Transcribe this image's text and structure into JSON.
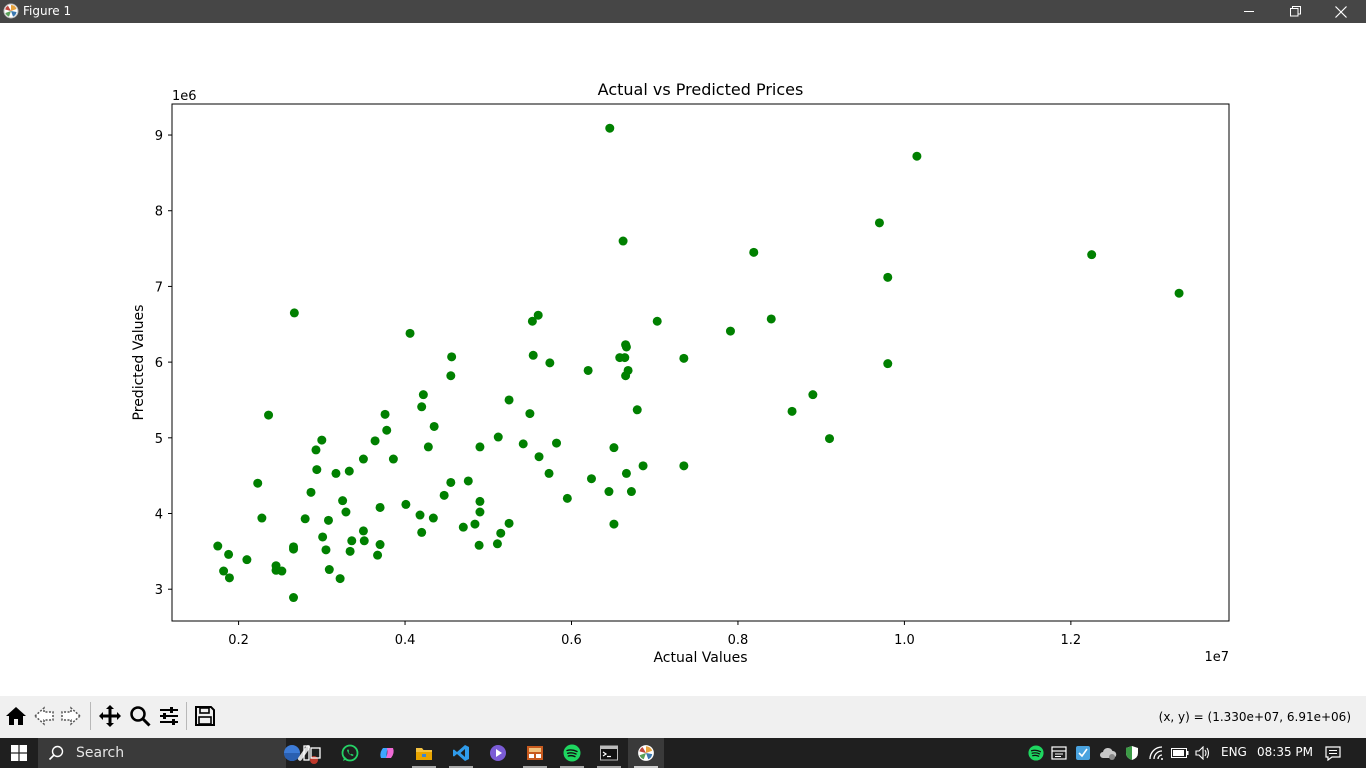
{
  "window": {
    "title": "Figure 1",
    "icons": {
      "app": "matplotlib-icon",
      "minimize": "minimize-icon",
      "maximize": "restore-icon",
      "close": "close-icon"
    }
  },
  "chart_data": {
    "type": "scatter",
    "title": "Actual vs Predicted Prices",
    "xlabel": "Actual Values",
    "ylabel": "Predicted Values",
    "x_offset_label": "1e7",
    "y_offset_label": "1e6",
    "x_ticks": [
      0.2,
      0.4,
      0.6,
      0.8,
      1.0,
      1.2
    ],
    "x_tick_labels": [
      "0.2",
      "0.4",
      "0.6",
      "0.8",
      "1.0",
      "1.2"
    ],
    "y_ticks": [
      3,
      4,
      5,
      6,
      7,
      8,
      9
    ],
    "y_tick_labels": [
      "3",
      "4",
      "5",
      "6",
      "7",
      "8",
      "9"
    ],
    "xlim": [
      0.12,
      1.39
    ],
    "ylim": [
      2.58,
      9.41
    ],
    "grid": false,
    "marker_color": "#008000",
    "points": [
      [
        0.175,
        3.57
      ],
      [
        0.182,
        3.24
      ],
      [
        0.188,
        3.46
      ],
      [
        0.189,
        3.15
      ],
      [
        0.21,
        3.39
      ],
      [
        0.223,
        4.4
      ],
      [
        0.228,
        3.94
      ],
      [
        0.236,
        5.3
      ],
      [
        0.245,
        3.31
      ],
      [
        0.245,
        3.25
      ],
      [
        0.252,
        3.24
      ],
      [
        0.266,
        3.53
      ],
      [
        0.266,
        3.56
      ],
      [
        0.266,
        2.89
      ],
      [
        0.267,
        6.65
      ],
      [
        0.28,
        3.93
      ],
      [
        0.287,
        4.28
      ],
      [
        0.293,
        4.84
      ],
      [
        0.294,
        4.58
      ],
      [
        0.3,
        4.97
      ],
      [
        0.301,
        3.69
      ],
      [
        0.305,
        3.52
      ],
      [
        0.308,
        3.91
      ],
      [
        0.309,
        3.26
      ],
      [
        0.317,
        4.53
      ],
      [
        0.322,
        3.14
      ],
      [
        0.325,
        4.17
      ],
      [
        0.329,
        4.02
      ],
      [
        0.333,
        4.56
      ],
      [
        0.334,
        3.5
      ],
      [
        0.336,
        3.64
      ],
      [
        0.35,
        4.72
      ],
      [
        0.35,
        3.77
      ],
      [
        0.351,
        3.64
      ],
      [
        0.364,
        4.96
      ],
      [
        0.367,
        3.45
      ],
      [
        0.37,
        4.08
      ],
      [
        0.37,
        3.59
      ],
      [
        0.376,
        5.31
      ],
      [
        0.378,
        5.1
      ],
      [
        0.386,
        4.72
      ],
      [
        0.401,
        4.12
      ],
      [
        0.406,
        6.38
      ],
      [
        0.418,
        3.98
      ],
      [
        0.42,
        3.75
      ],
      [
        0.42,
        5.41
      ],
      [
        0.422,
        5.57
      ],
      [
        0.428,
        4.88
      ],
      [
        0.434,
        3.94
      ],
      [
        0.435,
        5.15
      ],
      [
        0.447,
        4.24
      ],
      [
        0.455,
        4.41
      ],
      [
        0.455,
        5.82
      ],
      [
        0.456,
        6.07
      ],
      [
        0.47,
        3.82
      ],
      [
        0.476,
        4.43
      ],
      [
        0.484,
        3.86
      ],
      [
        0.489,
        3.58
      ],
      [
        0.49,
        4.88
      ],
      [
        0.49,
        4.16
      ],
      [
        0.49,
        4.02
      ],
      [
        0.511,
        3.6
      ],
      [
        0.512,
        5.01
      ],
      [
        0.515,
        3.74
      ],
      [
        0.525,
        3.87
      ],
      [
        0.525,
        5.5
      ],
      [
        0.542,
        4.92
      ],
      [
        0.55,
        5.32
      ],
      [
        0.553,
        6.54
      ],
      [
        0.554,
        6.09
      ],
      [
        0.56,
        6.62
      ],
      [
        0.561,
        4.75
      ],
      [
        0.573,
        4.53
      ],
      [
        0.574,
        5.99
      ],
      [
        0.582,
        4.93
      ],
      [
        0.595,
        4.2
      ],
      [
        0.62,
        5.89
      ],
      [
        0.624,
        4.46
      ],
      [
        0.645,
        4.29
      ],
      [
        0.646,
        9.09
      ],
      [
        0.651,
        3.86
      ],
      [
        0.651,
        4.87
      ],
      [
        0.658,
        6.06
      ],
      [
        0.662,
        7.6
      ],
      [
        0.664,
        6.06
      ],
      [
        0.665,
        5.82
      ],
      [
        0.665,
        6.23
      ],
      [
        0.666,
        6.2
      ],
      [
        0.666,
        4.53
      ],
      [
        0.668,
        5.89
      ],
      [
        0.672,
        4.29
      ],
      [
        0.679,
        5.37
      ],
      [
        0.686,
        4.63
      ],
      [
        0.703,
        6.54
      ],
      [
        0.735,
        4.63
      ],
      [
        0.735,
        6.05
      ],
      [
        0.791,
        6.41
      ],
      [
        0.84,
        6.57
      ],
      [
        0.819,
        7.45
      ],
      [
        0.865,
        5.35
      ],
      [
        0.89,
        5.57
      ],
      [
        0.91,
        4.99
      ],
      [
        0.97,
        7.84
      ],
      [
        0.98,
        5.98
      ],
      [
        0.98,
        7.12
      ],
      [
        1.015,
        8.72
      ],
      [
        1.225,
        7.42
      ],
      [
        1.33,
        6.91
      ]
    ]
  },
  "toolbar": {
    "tools": [
      {
        "name": "home-icon"
      },
      {
        "name": "back-icon"
      },
      {
        "name": "forward-icon"
      },
      {
        "name": "pan-icon"
      },
      {
        "name": "zoom-icon"
      },
      {
        "name": "configure-subplots-icon"
      },
      {
        "name": "save-icon"
      }
    ],
    "coord_readout": "(x, y) = (1.330e+07, 6.91e+06)"
  },
  "taskbar": {
    "search_label": "Search",
    "language": "ENG",
    "time": "08:35 PM",
    "apps": [
      "task-view-icon",
      "whatsapp-icon",
      "copilot-icon",
      "file-explorer-icon",
      "vscode-icon",
      "media-player-icon",
      "app-icon",
      "spotify-icon",
      "terminal-icon",
      "matplotlib-icon"
    ]
  }
}
